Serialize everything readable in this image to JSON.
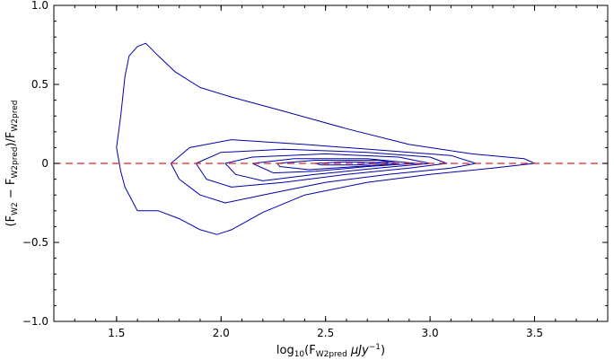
{
  "chart_data": {
    "type": "contour",
    "xlim": [
      1.2,
      3.85
    ],
    "ylim": [
      -1.0,
      1.0
    ],
    "x_ticks": [
      1.5,
      2.0,
      2.5,
      3.0,
      3.5
    ],
    "x_tick_labels": [
      "1.5",
      "2.0",
      "2.5",
      "3.0",
      "3.5"
    ],
    "y_ticks": [
      -1.0,
      -0.5,
      0,
      0.5,
      1.0
    ],
    "y_tick_labels": [
      "−1.0",
      "−0.5",
      "0",
      "0.5",
      "1.0"
    ],
    "xlabel": {
      "prefix": "log",
      "prefix_sub": "10",
      "open": "(F",
      "sub": "W2pred",
      "unit": " μJy",
      "sup": "−1",
      "close": ")"
    },
    "ylabel": {
      "p1": "(F",
      "s1": "W2",
      "p2": " − F",
      "s2": "W2pred",
      "p3": ")/F",
      "s3": "W2pred"
    },
    "reference_line": {
      "y": 0,
      "style": "dashed",
      "color": "#d62728"
    },
    "contour_color": "#0000aa",
    "grid": false,
    "contours": [
      {
        "points": [
          [
            1.5,
            0.1
          ],
          [
            1.52,
            0.3
          ],
          [
            1.54,
            0.55
          ],
          [
            1.56,
            0.68
          ],
          [
            1.6,
            0.74
          ],
          [
            1.64,
            0.76
          ],
          [
            1.7,
            0.68
          ],
          [
            1.78,
            0.58
          ],
          [
            1.9,
            0.48
          ],
          [
            2.05,
            0.42
          ],
          [
            2.3,
            0.33
          ],
          [
            2.6,
            0.22
          ],
          [
            2.9,
            0.12
          ],
          [
            3.2,
            0.06
          ],
          [
            3.45,
            0.03
          ],
          [
            3.5,
            0.0
          ],
          [
            3.3,
            -0.03
          ],
          [
            3.0,
            -0.07
          ],
          [
            2.7,
            -0.12
          ],
          [
            2.4,
            -0.2
          ],
          [
            2.2,
            -0.31
          ],
          [
            2.05,
            -0.42
          ],
          [
            1.98,
            -0.45
          ],
          [
            1.9,
            -0.42
          ],
          [
            1.8,
            -0.35
          ],
          [
            1.7,
            -0.3
          ],
          [
            1.6,
            -0.3
          ],
          [
            1.58,
            -0.25
          ],
          [
            1.54,
            -0.15
          ],
          [
            1.52,
            -0.05
          ],
          [
            1.5,
            0.1
          ]
        ]
      },
      {
        "points": [
          [
            1.76,
            0.0
          ],
          [
            1.85,
            0.1
          ],
          [
            2.05,
            0.15
          ],
          [
            2.4,
            0.12
          ],
          [
            2.8,
            0.08
          ],
          [
            3.1,
            0.05
          ],
          [
            3.22,
            0.0
          ],
          [
            3.1,
            -0.03
          ],
          [
            2.8,
            -0.07
          ],
          [
            2.5,
            -0.12
          ],
          [
            2.2,
            -0.2
          ],
          [
            2.02,
            -0.25
          ],
          [
            1.9,
            -0.2
          ],
          [
            1.8,
            -0.1
          ],
          [
            1.76,
            0.0
          ]
        ]
      },
      {
        "points": [
          [
            1.88,
            0.0
          ],
          [
            2.0,
            0.07
          ],
          [
            2.3,
            0.09
          ],
          [
            2.7,
            0.07
          ],
          [
            3.0,
            0.04
          ],
          [
            3.08,
            0.0
          ],
          [
            2.9,
            -0.03
          ],
          [
            2.6,
            -0.07
          ],
          [
            2.3,
            -0.12
          ],
          [
            2.05,
            -0.15
          ],
          [
            1.93,
            -0.1
          ],
          [
            1.88,
            0.0
          ]
        ]
      },
      {
        "points": [
          [
            2.02,
            0.0
          ],
          [
            2.15,
            0.04
          ],
          [
            2.5,
            0.06
          ],
          [
            2.85,
            0.04
          ],
          [
            3.0,
            0.0
          ],
          [
            2.75,
            -0.03
          ],
          [
            2.45,
            -0.07
          ],
          [
            2.2,
            -0.11
          ],
          [
            2.07,
            -0.07
          ],
          [
            2.02,
            0.0
          ]
        ]
      },
      {
        "points": [
          [
            2.15,
            0.0
          ],
          [
            2.35,
            0.03
          ],
          [
            2.7,
            0.03
          ],
          [
            2.93,
            0.0
          ],
          [
            2.7,
            -0.02
          ],
          [
            2.45,
            -0.05
          ],
          [
            2.25,
            -0.06
          ],
          [
            2.15,
            0.0
          ]
        ]
      },
      {
        "points": [
          [
            2.27,
            0.0
          ],
          [
            2.45,
            0.02
          ],
          [
            2.75,
            0.02
          ],
          [
            2.85,
            0.0
          ],
          [
            2.65,
            -0.02
          ],
          [
            2.42,
            -0.04
          ],
          [
            2.28,
            -0.02
          ],
          [
            2.27,
            0.0
          ]
        ]
      },
      {
        "points": [
          [
            2.45,
            0.0
          ],
          [
            2.6,
            0.01
          ],
          [
            2.8,
            0.005
          ],
          [
            2.65,
            -0.01
          ],
          [
            2.48,
            -0.01
          ],
          [
            2.45,
            0.0
          ]
        ]
      }
    ]
  }
}
